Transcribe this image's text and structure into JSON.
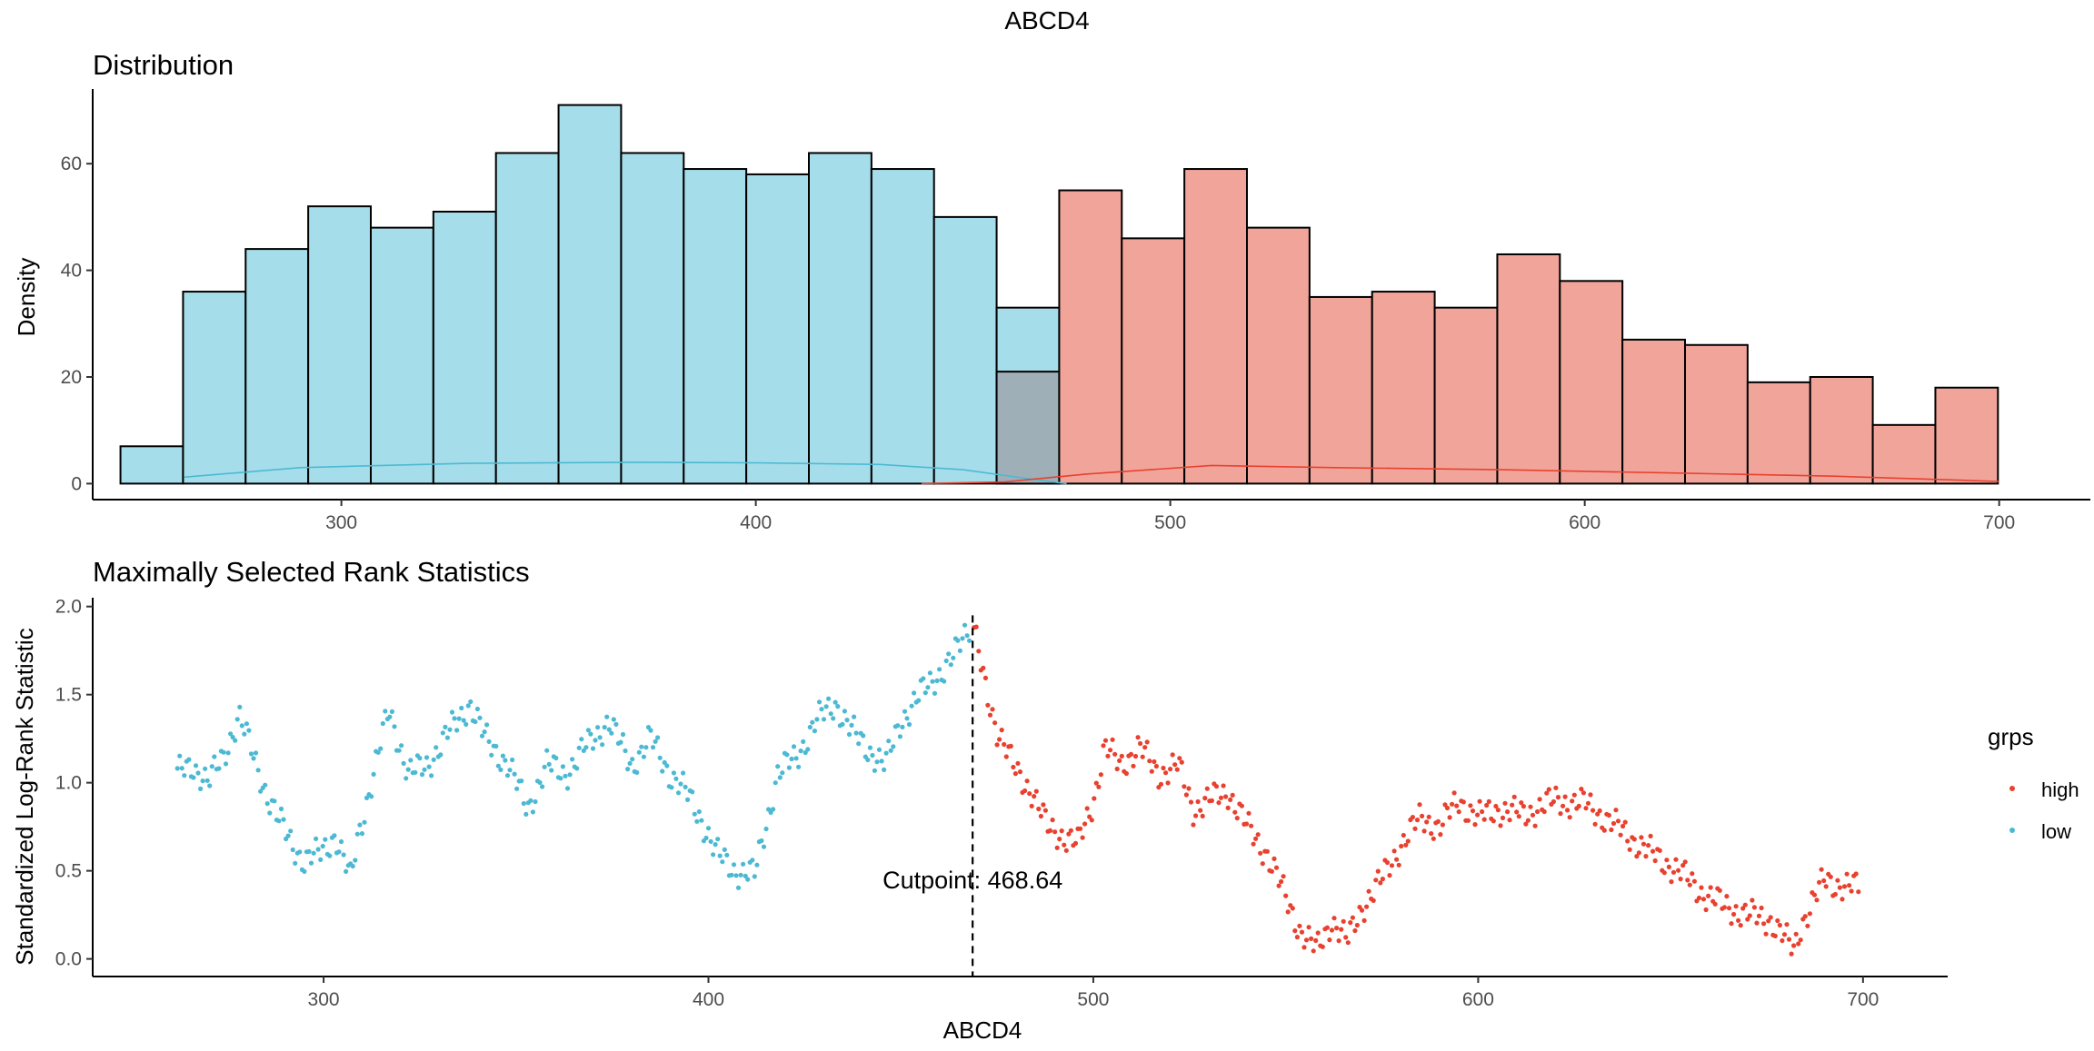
{
  "figure_title": "ABCD4",
  "colors": {
    "low": "#4CB9D3",
    "high": "#E8412F",
    "low_fill": "#A6DDEA",
    "high_fill": "#F1A59A",
    "overlap_fill": "#9FAFB7"
  },
  "chart_data": [
    {
      "type": "bar",
      "title": "Distribution",
      "xlabel": "",
      "ylabel": "Density",
      "xlim": [
        240,
        722
      ],
      "ylim": [
        -3,
        74
      ],
      "xticks": [
        300,
        400,
        500,
        600,
        700
      ],
      "yticks": [
        0,
        20,
        40,
        60
      ],
      "bin_width": 15.1,
      "low": {
        "bin_starts": [
          246.7,
          261.8,
          276.9,
          292.0,
          307.1,
          322.2,
          337.3,
          352.4,
          367.5,
          382.6,
          397.7,
          412.8,
          427.9,
          443.0,
          458.1
        ],
        "values": [
          7,
          36,
          44,
          52,
          48,
          51,
          62,
          71,
          62,
          59,
          58,
          62,
          59,
          50,
          33
        ]
      },
      "high": {
        "bin_starts": [
          458.1,
          473.2,
          488.3,
          503.4,
          518.5,
          533.6,
          548.7,
          563.8,
          578.9,
          594.0,
          609.1,
          624.2,
          639.3,
          654.4,
          669.5,
          684.6
        ],
        "values": [
          21,
          55,
          46,
          59,
          48,
          35,
          36,
          33,
          43,
          38,
          27,
          26,
          19,
          20,
          11,
          18
        ]
      },
      "density_low": {
        "x": [
          262,
          290,
          330,
          370,
          400,
          430,
          450,
          465,
          475
        ],
        "y": [
          1.2,
          3.0,
          3.8,
          4.0,
          3.9,
          3.6,
          2.6,
          1.0,
          0.0
        ]
      },
      "density_high": {
        "x": [
          440,
          460,
          480,
          510,
          540,
          580,
          620,
          660,
          700
        ],
        "y": [
          0.0,
          0.3,
          1.8,
          3.4,
          3.0,
          2.6,
          2.0,
          1.4,
          0.4
        ]
      }
    },
    {
      "type": "scatter",
      "title": "Maximally Selected Rank Statistics",
      "xlabel": "ABCD4",
      "ylabel": "Standardized Log-Rank Statistic",
      "xlim": [
        240,
        722
      ],
      "ylim": [
        -0.1,
        2.05
      ],
      "xticks": [
        300,
        400,
        500,
        600,
        700
      ],
      "yticks": [
        0.0,
        0.5,
        1.0,
        1.5,
        2.0
      ],
      "cutpoint": 468.64,
      "cutpoint_label": "Cutpoint: 468.64",
      "legend": {
        "title": "grps",
        "position": "right",
        "items": [
          "high",
          "low"
        ]
      },
      "anchors_low": {
        "x": [
          262,
          266,
          270,
          274,
          278,
          281,
          285,
          288,
          292,
          295,
          299,
          303,
          307,
          309,
          313,
          317,
          322,
          327,
          333,
          338,
          342,
          348,
          353,
          358,
          363,
          368,
          374,
          380,
          385,
          390,
          394,
          398,
          402,
          407,
          412,
          418,
          423,
          428,
          433,
          437,
          441,
          446,
          450,
          455,
          460,
          464,
          468
        ],
        "y": [
          1.05,
          1.1,
          1.0,
          1.15,
          1.38,
          1.2,
          0.95,
          0.8,
          0.65,
          0.55,
          0.6,
          0.7,
          0.45,
          0.7,
          1.05,
          1.42,
          1.05,
          1.1,
          1.3,
          1.45,
          1.25,
          1.1,
          0.85,
          1.1,
          1.05,
          1.2,
          1.35,
          1.1,
          1.25,
          1.05,
          0.95,
          0.8,
          0.6,
          0.5,
          0.48,
          1.05,
          1.15,
          1.35,
          1.45,
          1.3,
          1.2,
          1.1,
          1.35,
          1.5,
          1.62,
          1.72,
          1.9
        ]
      },
      "anchors_high": {
        "x": [
          469,
          472,
          475,
          479,
          484,
          488,
          492,
          496,
          500,
          503,
          507,
          512,
          517,
          522,
          526,
          530,
          535,
          540,
          545,
          550,
          554,
          558,
          562,
          566,
          570,
          575,
          580,
          585,
          590,
          595,
          600,
          605,
          612,
          620,
          628,
          636,
          645,
          652,
          658,
          664,
          670,
          676,
          682,
          684,
          686,
          690,
          694,
          699
        ],
        "y": [
          1.85,
          1.55,
          1.3,
          1.1,
          0.95,
          0.75,
          0.7,
          0.65,
          0.9,
          1.2,
          1.1,
          1.2,
          1.05,
          1.1,
          0.85,
          0.9,
          0.95,
          0.75,
          0.6,
          0.35,
          0.15,
          0.05,
          0.22,
          0.1,
          0.3,
          0.45,
          0.65,
          0.8,
          0.75,
          0.9,
          0.8,
          0.85,
          0.82,
          0.9,
          0.88,
          0.75,
          0.6,
          0.5,
          0.38,
          0.3,
          0.25,
          0.22,
          0.05,
          0.2,
          0.28,
          0.45,
          0.42,
          0.4
        ]
      },
      "point_spacing": 0.6
    }
  ]
}
